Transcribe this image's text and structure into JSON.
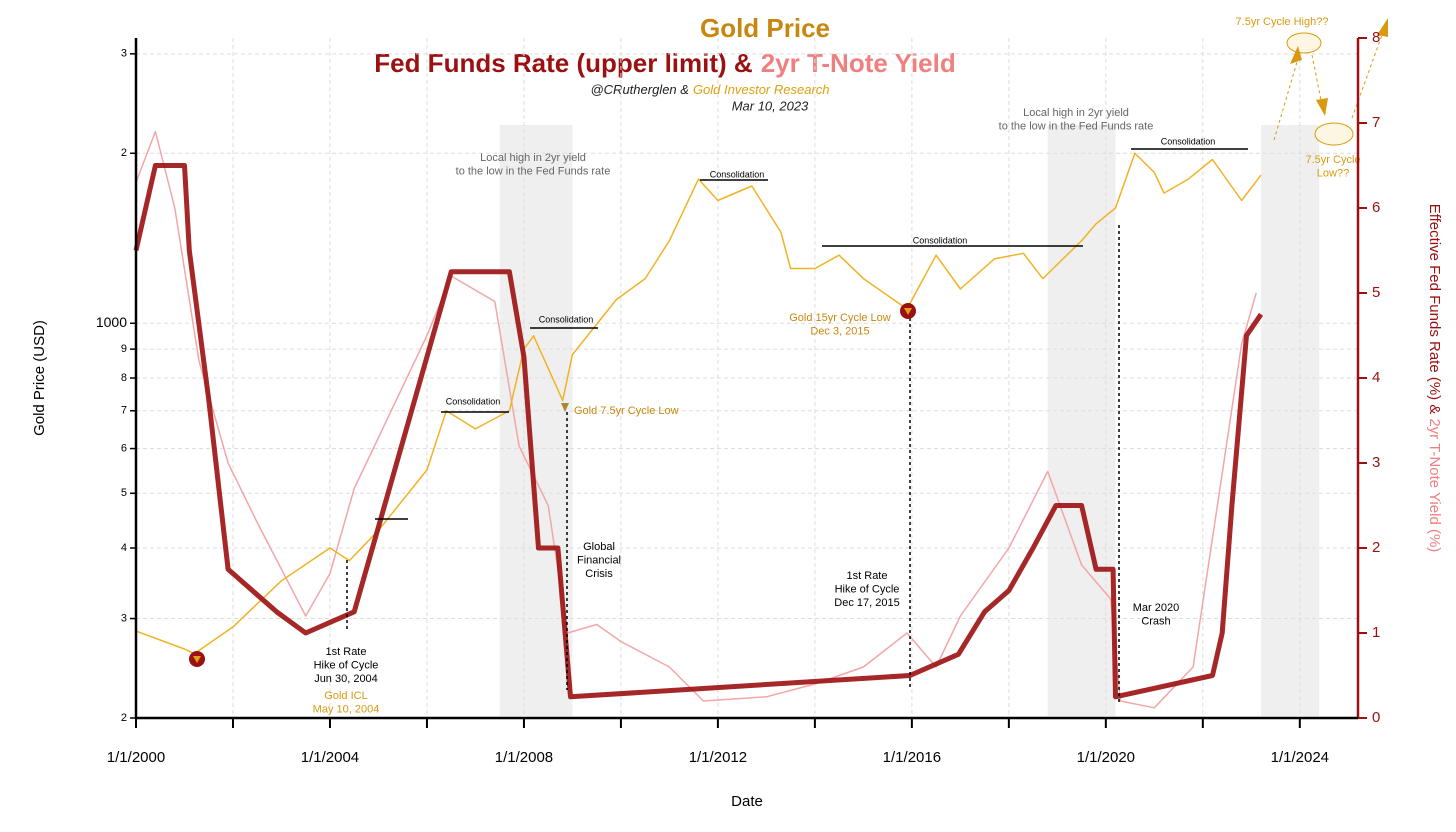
{
  "chart_data": {
    "type": "line",
    "title": "Gold Price",
    "subtitle_parts": [
      "Fed Funds Rate (upper limit) &",
      "2yr T-Note Yield"
    ],
    "credit_parts": [
      "@CRutherglen &",
      "Gold Investor Research"
    ],
    "date": "Mar 10, 2023",
    "xlabel": "Date",
    "ylabel": "Gold Price (USD)",
    "y2label_parts": [
      "Effective Fed Funds Rate (%) &",
      "2yr T-Note Yield (%)"
    ],
    "xlim": [
      2000,
      2025.2
    ],
    "xticks": [
      {
        "value": 2000,
        "label": "1/1/2000"
      },
      {
        "value": 2004,
        "label": "1/1/2004"
      },
      {
        "value": 2008,
        "label": "1/1/2008"
      },
      {
        "value": 2012,
        "label": "1/1/2012"
      },
      {
        "value": 2016,
        "label": "1/1/2016"
      },
      {
        "value": 2020,
        "label": "1/1/2020"
      },
      {
        "value": 2024,
        "label": "1/1/2024"
      }
    ],
    "xminorticks": [
      2002,
      2006,
      2010,
      2014,
      2018,
      2022
    ],
    "ylim": [
      200,
      3200
    ],
    "ylog": true,
    "yticks": [
      {
        "value": 200,
        "label": "2"
      },
      {
        "value": 300,
        "label": "3"
      },
      {
        "value": 400,
        "label": "4"
      },
      {
        "value": 500,
        "label": "5"
      },
      {
        "value": 600,
        "label": "6"
      },
      {
        "value": 700,
        "label": "7"
      },
      {
        "value": 800,
        "label": "8"
      },
      {
        "value": 900,
        "label": "9"
      },
      1000,
      {
        "value": 2000,
        "label": "2"
      },
      {
        "value": 3000,
        "label": "3"
      }
    ],
    "y2lim": [
      0,
      8
    ],
    "y2ticks": [
      0,
      1,
      2,
      3,
      4,
      5,
      6,
      7,
      8
    ],
    "grid": true,
    "shaded_spans": [
      [
        2007.5,
        2009.0
      ],
      [
        2018.8,
        2020.2
      ],
      [
        2023.2,
        2024.4
      ]
    ],
    "series": [
      {
        "name": "2yr T-Note Yield",
        "color": "#f4a6a6",
        "axis": "y2",
        "x": [
          2000,
          2000.4,
          2000.8,
          2001.3,
          2001.9,
          2002.5,
          2003.5,
          2004,
          2004.5,
          2005,
          2006,
          2006.5,
          2007.4,
          2007.9,
          2008.5,
          2008.9,
          2009.5,
          2010,
          2011,
          2011.7,
          2013,
          2014,
          2015,
          2015.9,
          2016.5,
          2017,
          2018,
          2018.8,
          2019.5,
          2020.1,
          2020.3,
          2021,
          2021.8,
          2022.3,
          2022.8,
          2023.1
        ],
        "values": [
          6.3,
          6.9,
          6.0,
          4.2,
          3.0,
          2.3,
          1.2,
          1.7,
          2.7,
          3.3,
          4.5,
          5.2,
          4.9,
          3.2,
          2.5,
          1.0,
          1.1,
          0.9,
          0.6,
          0.2,
          0.25,
          0.4,
          0.6,
          1.0,
          0.6,
          1.2,
          2.0,
          2.9,
          1.8,
          1.4,
          0.2,
          0.12,
          0.6,
          2.5,
          4.4,
          5.0
        ]
      },
      {
        "name": "Gold Price",
        "color": "#f0b323",
        "axis": "y",
        "x": [
          2000,
          2001,
          2001.2,
          2002,
          2003,
          2004,
          2004.4,
          2005,
          2006,
          2006.4,
          2007,
          2007.7,
          2008,
          2008.2,
          2008.8,
          2009,
          2009.9,
          2010.5,
          2011,
          2011.6,
          2012,
          2012.7,
          2013.3,
          2013.5,
          2014,
          2014.5,
          2015,
          2015.9,
          2016.5,
          2017,
          2017.7,
          2018.3,
          2018.7,
          2019.5,
          2019.8,
          2020.2,
          2020.6,
          2021,
          2021.2,
          2021.7,
          2022.2,
          2022.8,
          2023.2
        ],
        "values": [
          285,
          265,
          260,
          290,
          350,
          400,
          380,
          430,
          550,
          700,
          650,
          700,
          900,
          950,
          730,
          880,
          1100,
          1200,
          1400,
          1800,
          1650,
          1750,
          1450,
          1250,
          1250,
          1320,
          1200,
          1060,
          1320,
          1150,
          1300,
          1330,
          1200,
          1400,
          1500,
          1600,
          2000,
          1850,
          1700,
          1800,
          1950,
          1650,
          1830
        ]
      },
      {
        "name": "Fed Funds Rate (upper limit)",
        "color": "#9b1010",
        "axis": "y2",
        "x": [
          2000,
          2000.4,
          2001,
          2001.1,
          2001.5,
          2001.9,
          2002.9,
          2003.5,
          2004.5,
          2005,
          2006.5,
          2007.7,
          2008,
          2008.3,
          2008.7,
          2008.96,
          2015.96,
          2016.96,
          2017.5,
          2018,
          2018.5,
          2018.97,
          2019.5,
          2019.8,
          2020.15,
          2020.2,
          2022.2,
          2022.4,
          2022.6,
          2022.9,
          2023.2
        ],
        "values": [
          5.5,
          6.5,
          6.5,
          5.5,
          3.75,
          1.75,
          1.25,
          1.0,
          1.25,
          2.25,
          5.25,
          5.25,
          4.25,
          2.0,
          2.0,
          0.25,
          0.5,
          0.75,
          1.25,
          1.5,
          2.0,
          2.5,
          2.5,
          1.75,
          1.75,
          0.25,
          0.5,
          1.0,
          2.5,
          4.5,
          4.75
        ]
      }
    ],
    "annotations": [
      [
        "Local high in 2yr yield",
        "to the low in the Fed Funds rate"
      ],
      [
        "Local high in 2yr yield",
        "to the low in the Fed Funds rate"
      ],
      [
        "Consolidation"
      ],
      [
        "Consolidation"
      ],
      [
        "Consolidation"
      ],
      [
        "Consolidation"
      ],
      [
        "Consolidation"
      ],
      [
        "Gold 7.5yr Cycle Low"
      ],
      [
        "Global",
        "Financial",
        "Crisis"
      ],
      [
        "1st Rate",
        "Hike of Cycle",
        "Jun 30, 2004"
      ],
      [
        "Gold ICL",
        "May 10, 2004"
      ],
      [
        "Gold 15yr Cycle Low",
        "Dec 3, 2015"
      ],
      [
        "1st Rate",
        "Hike of Cycle",
        "Dec 17, 2015"
      ],
      [
        "Mar 2020",
        "Crash"
      ],
      [
        "7.5yr Cycle High??"
      ],
      [
        "7.5yr Cycle",
        "Low??"
      ]
    ]
  }
}
